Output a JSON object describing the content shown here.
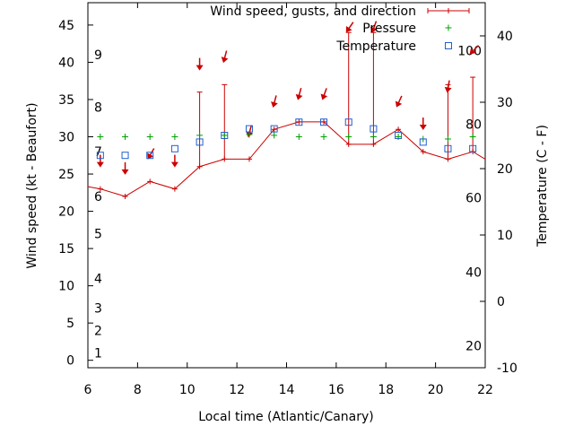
{
  "chart_data": {
    "type": "line",
    "title": "",
    "xlabel": "Local time (Atlantic/Canary)",
    "ylabel": "Wind speed (kt - Beaufort)",
    "y2label": "Temperature (C - F)",
    "xlim": [
      6,
      22
    ],
    "ylim": [
      -1,
      48
    ],
    "y2lim": [
      -10,
      45
    ],
    "grid": false,
    "legend_position": "top-right",
    "x_ticks": [
      "6",
      "8",
      "10",
      "12",
      "14",
      "16",
      "18",
      "20",
      "22"
    ],
    "y_ticks": [
      "0",
      "5",
      "10",
      "15",
      "20",
      "25",
      "30",
      "35",
      "40",
      "45"
    ],
    "y2_ticks": [
      "-10",
      "0",
      "10",
      "20",
      "30",
      "40"
    ],
    "beaufort_labels": [
      {
        "label": "1",
        "y": 1
      },
      {
        "label": "2",
        "y": 4
      },
      {
        "label": "3",
        "y": 7
      },
      {
        "label": "4",
        "y": 11
      },
      {
        "label": "5",
        "y": 17
      },
      {
        "label": "6",
        "y": 22
      },
      {
        "label": "7",
        "y": 28
      },
      {
        "label": "8",
        "y": 34
      },
      {
        "label": "9",
        "y": 41
      }
    ],
    "fahrenheit_labels": [
      {
        "label": "20",
        "y2": -6.7
      },
      {
        "label": "40",
        "y2": 4.4
      },
      {
        "label": "60",
        "y2": 15.6
      },
      {
        "label": "80",
        "y2": 26.7
      },
      {
        "label": "100",
        "y2": 37.8
      }
    ],
    "series": [
      {
        "name": "Wind speed, gusts, and direction",
        "color": "#cc0000",
        "x": [
          6,
          6.5,
          7.5,
          8.5,
          9.5,
          10.5,
          11.5,
          12.5,
          13.5,
          14.5,
          15.5,
          16.5,
          17.5,
          18.5,
          19.5,
          20.5,
          21.5,
          22
        ],
        "values": [
          23.3,
          23,
          22,
          24,
          23,
          26,
          27,
          27,
          31,
          32,
          32,
          29,
          29,
          31,
          28,
          27,
          28,
          27
        ],
        "gust_x": [
          10.5,
          11.5,
          16.5,
          17.5,
          20.5,
          21.5
        ],
        "gust_values": [
          36,
          37,
          44,
          44,
          37,
          38
        ],
        "direction_x": [
          6.5,
          7.5,
          8.5,
          9.5,
          10.5,
          11.5,
          12.5,
          13.5,
          14.5,
          15.5,
          16.5,
          17.5,
          18.5,
          19.5,
          20.5,
          21.5
        ],
        "direction_y": [
          26.5,
          25.5,
          27.5,
          26.5,
          39.5,
          40.5,
          30.5,
          34.5,
          35.5,
          35.5,
          44.5,
          44.5,
          34.5,
          31.5,
          36.5,
          41.5
        ],
        "direction_deg": [
          0,
          0,
          30,
          0,
          0,
          15,
          15,
          15,
          15,
          20,
          35,
          20,
          25,
          0,
          10,
          45
        ]
      },
      {
        "name": "Pressure",
        "color": "#00a000",
        "x": [
          6.5,
          7.5,
          8.5,
          9.5,
          10.5,
          11.5,
          12.5,
          13.5,
          14.5,
          15.5,
          16.5,
          17.5,
          18.5,
          19.5,
          20.5,
          21.5
        ],
        "values": [
          30,
          30,
          30,
          30,
          30.2,
          30.2,
          30.3,
          30.2,
          30,
          30,
          30,
          30,
          30,
          29.7,
          29.7,
          30
        ]
      },
      {
        "name": "Temperature",
        "color": "#1f5fd0",
        "x": [
          6.5,
          7.5,
          8.5,
          9.5,
          10.5,
          11.5,
          12.5,
          13.5,
          14.5,
          15.5,
          16.5,
          17.5,
          18.5,
          19.5,
          20.5,
          21.5
        ],
        "values": [
          22,
          22,
          22,
          23,
          24,
          25,
          26,
          26,
          27,
          27,
          27,
          26,
          25,
          24,
          23,
          23
        ]
      }
    ]
  }
}
